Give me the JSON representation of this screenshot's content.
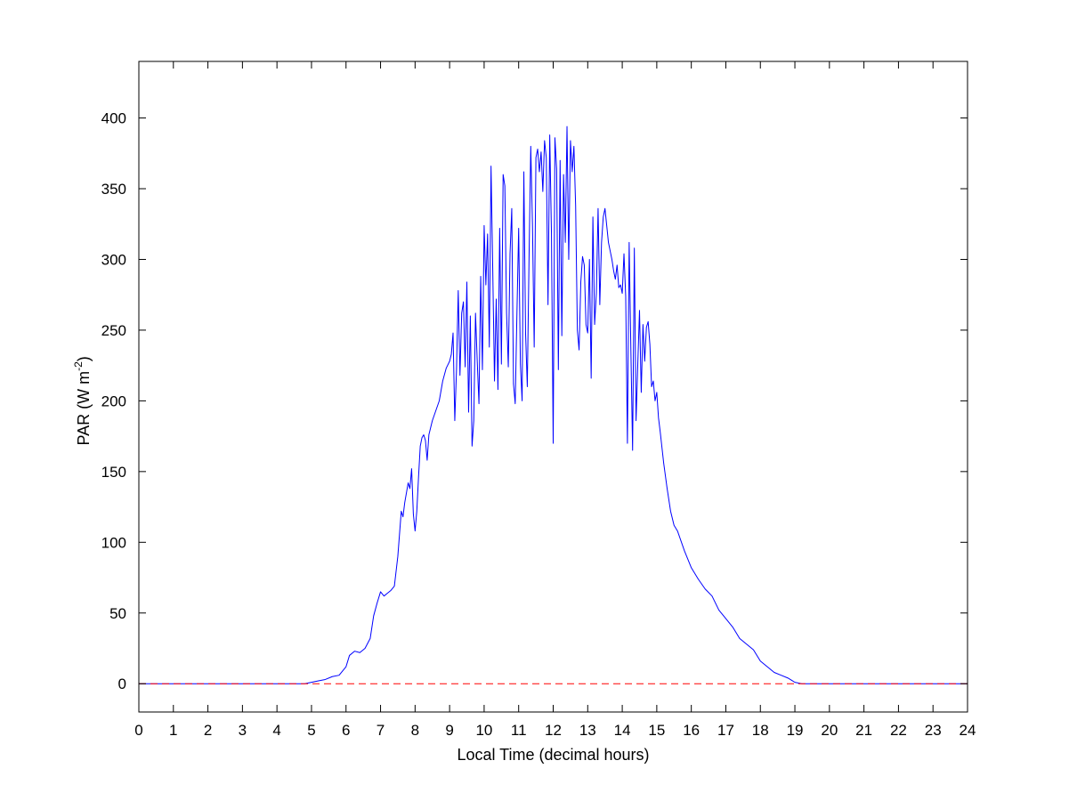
{
  "chart_data": {
    "type": "line",
    "title": "",
    "xlabel": "Local Time (decimal hours)",
    "ylabel": {
      "main": "PAR (W m",
      "superscript": "-2",
      "close": ")"
    },
    "xlim": [
      0,
      24
    ],
    "ylim": [
      -20,
      440
    ],
    "x_ticks": [
      0,
      1,
      2,
      3,
      4,
      5,
      6,
      7,
      8,
      9,
      10,
      11,
      12,
      13,
      14,
      15,
      16,
      17,
      18,
      19,
      20,
      21,
      22,
      23,
      24
    ],
    "y_ticks": [
      0,
      50,
      100,
      150,
      200,
      250,
      300,
      350,
      400
    ],
    "grid": false,
    "legend": "none",
    "series": [
      {
        "color": "#0000ff",
        "style": "solid",
        "points": [
          [
            0,
            0
          ],
          [
            4.8,
            0
          ],
          [
            5.0,
            1
          ],
          [
            5.2,
            2
          ],
          [
            5.4,
            3
          ],
          [
            5.6,
            5
          ],
          [
            5.8,
            6
          ],
          [
            6.0,
            12
          ],
          [
            6.1,
            20
          ],
          [
            6.25,
            23
          ],
          [
            6.4,
            22
          ],
          [
            6.55,
            25
          ],
          [
            6.7,
            32
          ],
          [
            6.8,
            48
          ],
          [
            6.9,
            57
          ],
          [
            7.0,
            65
          ],
          [
            7.1,
            62
          ],
          [
            7.2,
            64
          ],
          [
            7.3,
            66
          ],
          [
            7.4,
            69
          ],
          [
            7.5,
            90
          ],
          [
            7.6,
            122
          ],
          [
            7.65,
            118
          ],
          [
            7.7,
            128
          ],
          [
            7.8,
            142
          ],
          [
            7.85,
            138
          ],
          [
            7.9,
            152
          ],
          [
            7.95,
            120
          ],
          [
            8.0,
            108
          ],
          [
            8.05,
            122
          ],
          [
            8.1,
            146
          ],
          [
            8.15,
            168
          ],
          [
            8.2,
            174
          ],
          [
            8.25,
            176
          ],
          [
            8.3,
            172
          ],
          [
            8.35,
            158
          ],
          [
            8.4,
            176
          ],
          [
            8.5,
            186
          ],
          [
            8.6,
            193
          ],
          [
            8.7,
            200
          ],
          [
            8.8,
            214
          ],
          [
            8.9,
            223
          ],
          [
            9.0,
            228
          ],
          [
            9.05,
            233
          ],
          [
            9.1,
            248
          ],
          [
            9.15,
            186
          ],
          [
            9.2,
            222
          ],
          [
            9.25,
            278
          ],
          [
            9.3,
            218
          ],
          [
            9.35,
            262
          ],
          [
            9.4,
            270
          ],
          [
            9.45,
            224
          ],
          [
            9.5,
            284
          ],
          [
            9.55,
            192
          ],
          [
            9.6,
            260
          ],
          [
            9.65,
            168
          ],
          [
            9.7,
            186
          ],
          [
            9.75,
            262
          ],
          [
            9.8,
            228
          ],
          [
            9.85,
            198
          ],
          [
            9.9,
            288
          ],
          [
            9.95,
            222
          ],
          [
            10.0,
            324
          ],
          [
            10.05,
            282
          ],
          [
            10.1,
            318
          ],
          [
            10.15,
            238
          ],
          [
            10.2,
            366
          ],
          [
            10.25,
            292
          ],
          [
            10.3,
            214
          ],
          [
            10.35,
            272
          ],
          [
            10.4,
            208
          ],
          [
            10.45,
            322
          ],
          [
            10.5,
            226
          ],
          [
            10.55,
            360
          ],
          [
            10.6,
            352
          ],
          [
            10.65,
            262
          ],
          [
            10.7,
            224
          ],
          [
            10.75,
            304
          ],
          [
            10.8,
            336
          ],
          [
            10.85,
            212
          ],
          [
            10.9,
            198
          ],
          [
            10.95,
            262
          ],
          [
            11.0,
            322
          ],
          [
            11.05,
            226
          ],
          [
            11.1,
            200
          ],
          [
            11.15,
            362
          ],
          [
            11.2,
            248
          ],
          [
            11.25,
            210
          ],
          [
            11.3,
            300
          ],
          [
            11.35,
            380
          ],
          [
            11.4,
            324
          ],
          [
            11.45,
            238
          ],
          [
            11.5,
            372
          ],
          [
            11.55,
            378
          ],
          [
            11.6,
            362
          ],
          [
            11.65,
            376
          ],
          [
            11.7,
            348
          ],
          [
            11.75,
            384
          ],
          [
            11.8,
            372
          ],
          [
            11.85,
            268
          ],
          [
            11.9,
            388
          ],
          [
            11.95,
            318
          ],
          [
            12.0,
            170
          ],
          [
            12.05,
            386
          ],
          [
            12.1,
            364
          ],
          [
            12.15,
            222
          ],
          [
            12.2,
            370
          ],
          [
            12.25,
            246
          ],
          [
            12.3,
            360
          ],
          [
            12.35,
            312
          ],
          [
            12.4,
            394
          ],
          [
            12.45,
            300
          ],
          [
            12.5,
            384
          ],
          [
            12.55,
            362
          ],
          [
            12.6,
            380
          ],
          [
            12.65,
            338
          ],
          [
            12.7,
            250
          ],
          [
            12.75,
            236
          ],
          [
            12.8,
            284
          ],
          [
            12.85,
            302
          ],
          [
            12.9,
            296
          ],
          [
            12.95,
            254
          ],
          [
            13.0,
            248
          ],
          [
            13.05,
            300
          ],
          [
            13.1,
            216
          ],
          [
            13.15,
            330
          ],
          [
            13.2,
            254
          ],
          [
            13.25,
            276
          ],
          [
            13.3,
            336
          ],
          [
            13.35,
            268
          ],
          [
            13.4,
            312
          ],
          [
            13.45,
            330
          ],
          [
            13.5,
            336
          ],
          [
            13.55,
            324
          ],
          [
            13.6,
            312
          ],
          [
            13.65,
            306
          ],
          [
            13.7,
            300
          ],
          [
            13.75,
            292
          ],
          [
            13.8,
            286
          ],
          [
            13.85,
            296
          ],
          [
            13.9,
            280
          ],
          [
            13.95,
            282
          ],
          [
            14.0,
            276
          ],
          [
            14.05,
            304
          ],
          [
            14.1,
            274
          ],
          [
            14.15,
            170
          ],
          [
            14.2,
            312
          ],
          [
            14.25,
            236
          ],
          [
            14.3,
            165
          ],
          [
            14.35,
            308
          ],
          [
            14.4,
            186
          ],
          [
            14.45,
            226
          ],
          [
            14.5,
            264
          ],
          [
            14.55,
            206
          ],
          [
            14.6,
            254
          ],
          [
            14.65,
            228
          ],
          [
            14.7,
            252
          ],
          [
            14.75,
            256
          ],
          [
            14.8,
            240
          ],
          [
            14.85,
            210
          ],
          [
            14.9,
            214
          ],
          [
            14.95,
            200
          ],
          [
            15.0,
            206
          ],
          [
            15.05,
            188
          ],
          [
            15.1,
            178
          ],
          [
            15.2,
            156
          ],
          [
            15.3,
            138
          ],
          [
            15.4,
            122
          ],
          [
            15.5,
            112
          ],
          [
            15.6,
            108
          ],
          [
            15.8,
            94
          ],
          [
            16.0,
            82
          ],
          [
            16.2,
            74
          ],
          [
            16.4,
            67
          ],
          [
            16.6,
            62
          ],
          [
            16.8,
            52
          ],
          [
            17.0,
            46
          ],
          [
            17.2,
            40
          ],
          [
            17.4,
            32
          ],
          [
            17.6,
            28
          ],
          [
            17.8,
            24
          ],
          [
            18.0,
            16
          ],
          [
            18.2,
            12
          ],
          [
            18.4,
            8
          ],
          [
            18.6,
            6
          ],
          [
            18.8,
            4
          ],
          [
            19.0,
            1
          ],
          [
            19.2,
            0
          ],
          [
            24,
            0
          ]
        ]
      },
      {
        "color": "#ff0000",
        "style": "dashed",
        "points": [
          [
            0,
            0
          ],
          [
            24,
            0
          ]
        ]
      }
    ]
  }
}
